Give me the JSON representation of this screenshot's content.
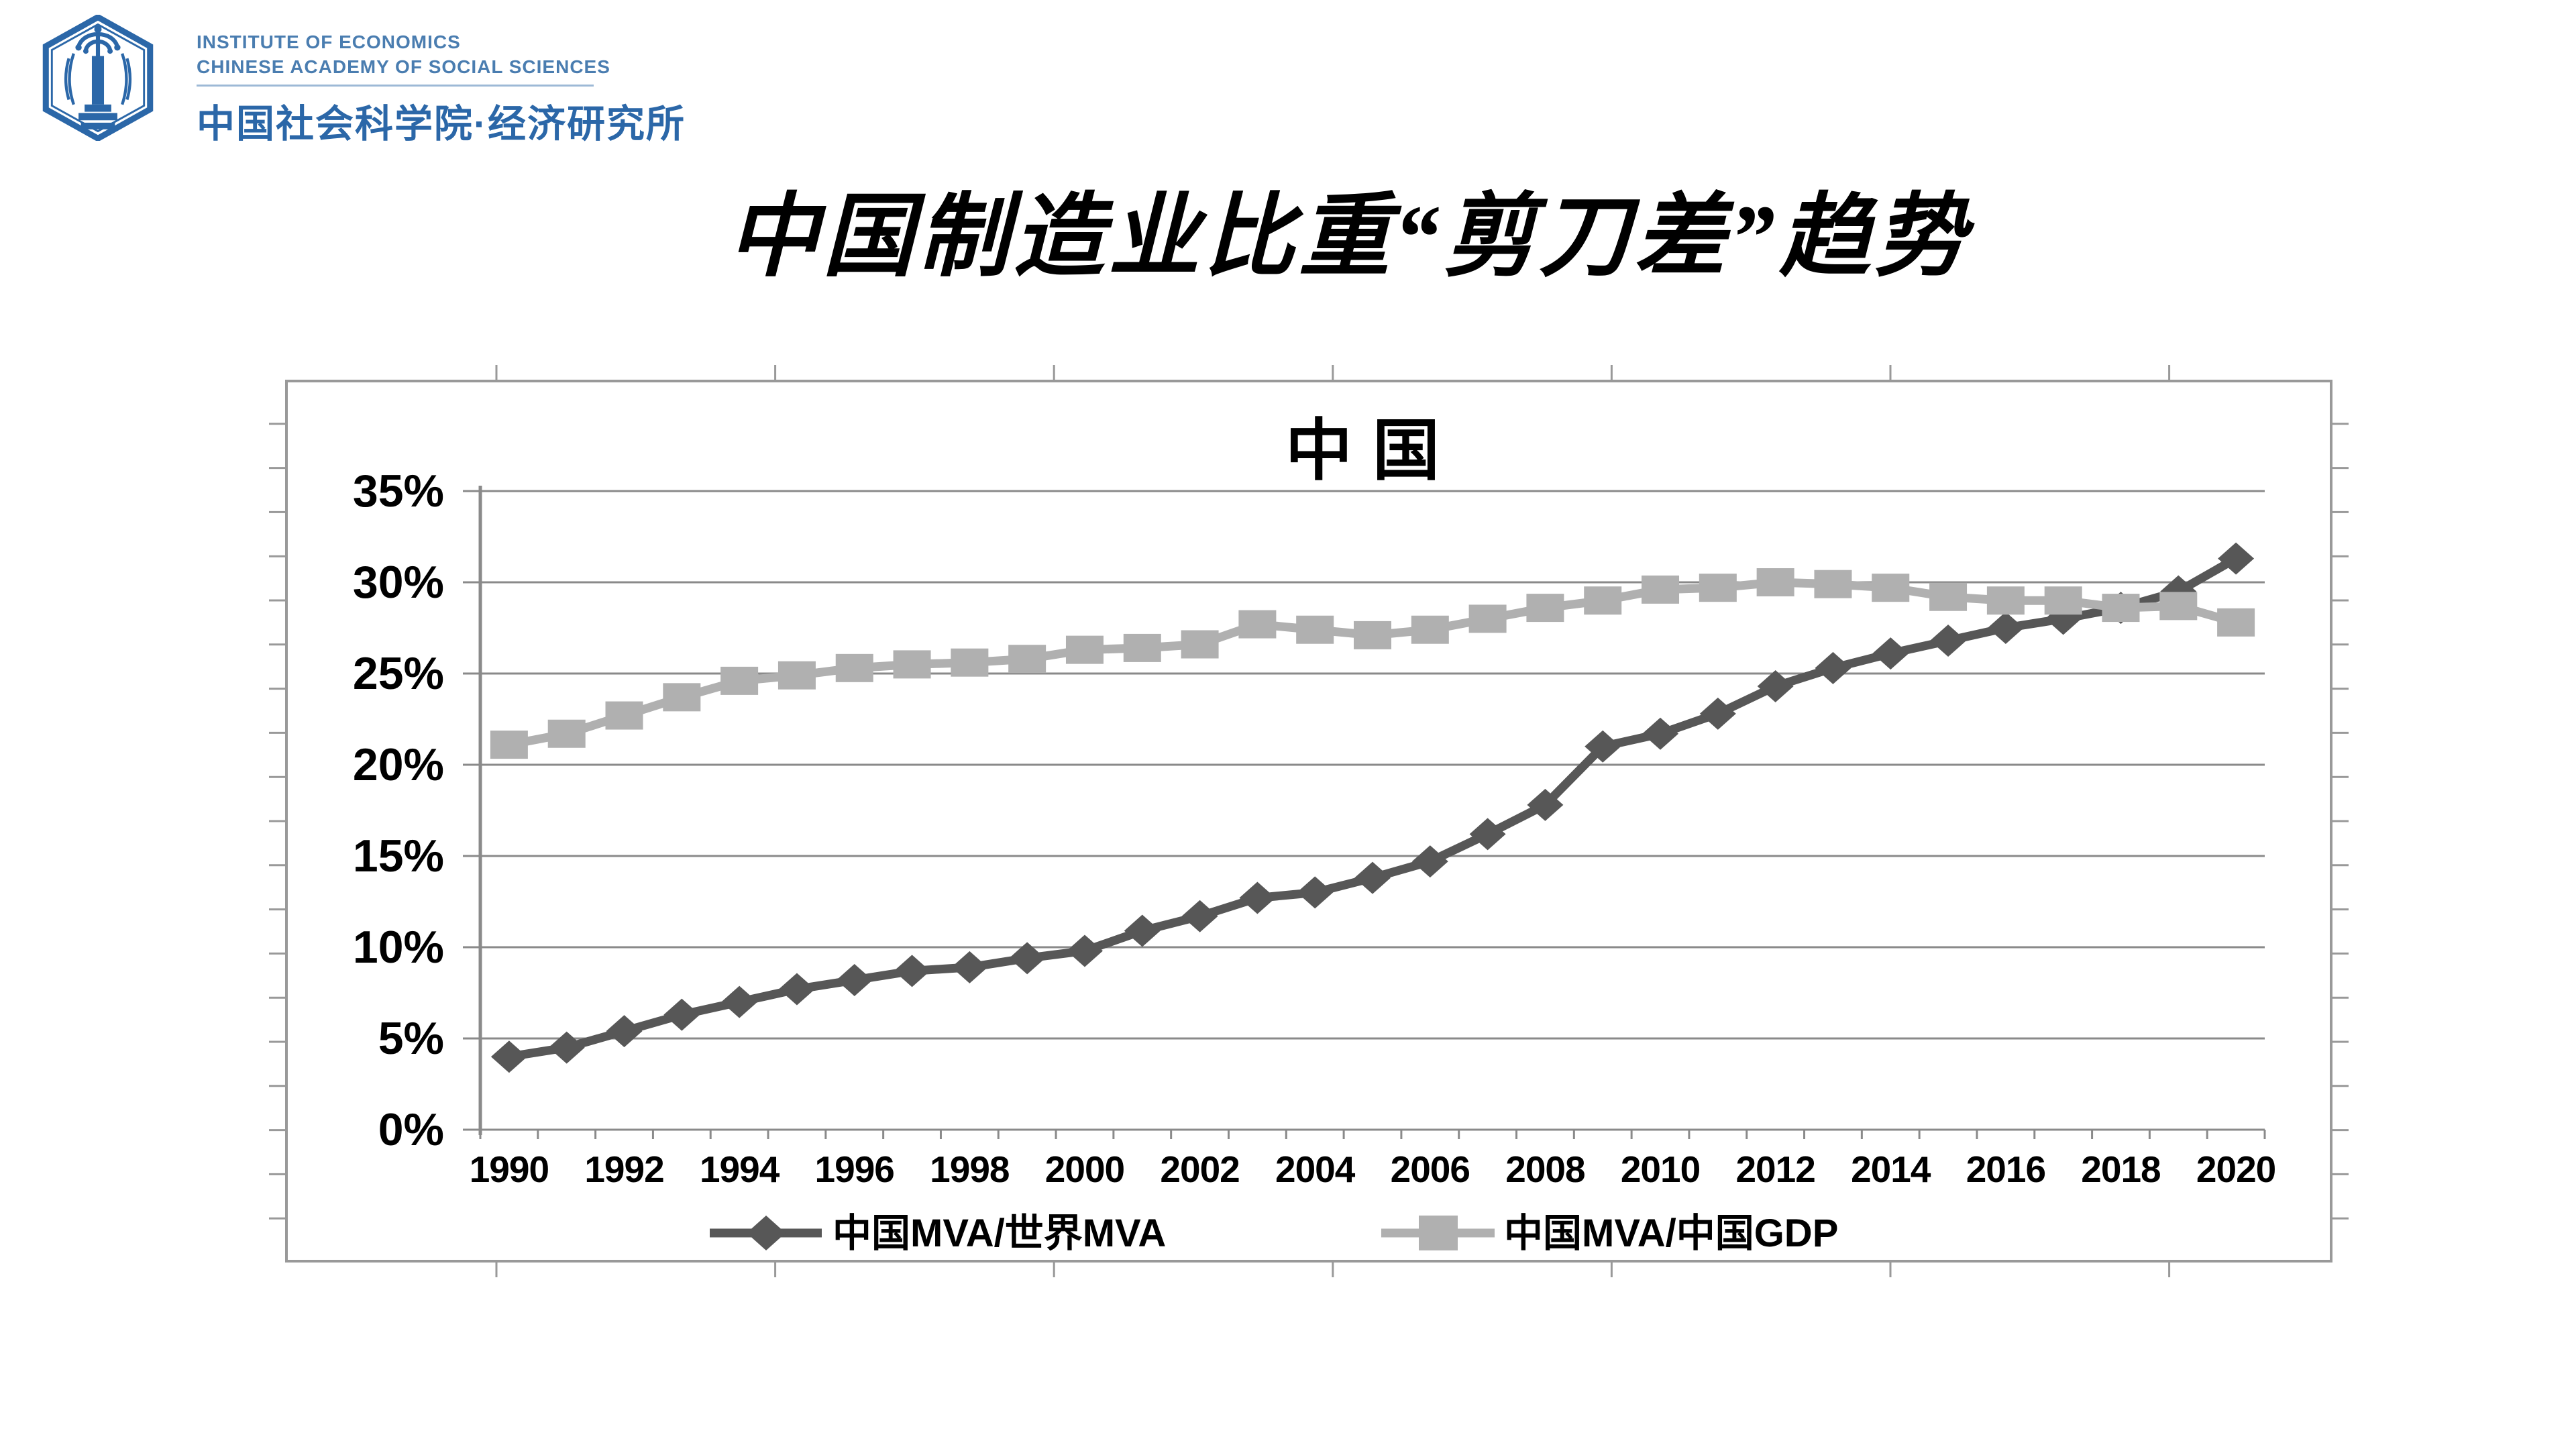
{
  "page": {
    "background": "#ffffff"
  },
  "logo": {
    "line1": "INSTITUTE OF ECONOMICS",
    "line2": "CHINESE ACADEMY OF SOCIAL SCIENCES",
    "line3": "中国社会科学院·经济研究所",
    "color": "#2b67a8"
  },
  "slide_title": "中国制造业比重“剪刀差”趋势",
  "chart_data": {
    "type": "line",
    "title": "中国",
    "x": [
      1990,
      1991,
      1992,
      1993,
      1994,
      1995,
      1996,
      1997,
      1998,
      1999,
      2000,
      2001,
      2002,
      2003,
      2004,
      2005,
      2006,
      2007,
      2008,
      2009,
      2010,
      2011,
      2012,
      2013,
      2014,
      2015,
      2016,
      2017,
      2018,
      2019,
      2020
    ],
    "x_tick_labels": [
      "1990",
      "1992",
      "1994",
      "1996",
      "1998",
      "2000",
      "2002",
      "2004",
      "2006",
      "2008",
      "2010",
      "2012",
      "2014",
      "2016",
      "2018",
      "2020"
    ],
    "y_tick_labels": [
      "35%",
      "30%",
      "25%",
      "20%",
      "15%",
      "10%",
      "5%",
      "0%"
    ],
    "ylim": [
      0,
      35
    ],
    "y_major_step": 5,
    "grid": true,
    "legend_position": "bottom",
    "series": [
      {
        "name": "中国MVA/世界MVA",
        "marker": "diamond",
        "color": "#575757",
        "values": [
          4.0,
          4.5,
          5.4,
          6.3,
          7.0,
          7.7,
          8.2,
          8.7,
          8.9,
          9.4,
          9.8,
          10.9,
          11.7,
          12.7,
          13.0,
          13.8,
          14.7,
          16.2,
          17.8,
          21.0,
          21.7,
          22.8,
          24.3,
          25.3,
          26.1,
          26.8,
          27.5,
          28.0,
          28.6,
          29.5,
          31.3
        ]
      },
      {
        "name": "中国MVA/中国GDP",
        "marker": "square",
        "color": "#b0b0b0",
        "values": [
          21.1,
          21.7,
          22.7,
          23.7,
          24.6,
          24.9,
          25.3,
          25.5,
          25.6,
          25.8,
          26.3,
          26.4,
          26.6,
          27.7,
          27.4,
          27.1,
          27.4,
          28.0,
          28.6,
          29.0,
          29.6,
          29.7,
          30.0,
          29.9,
          29.7,
          29.2,
          29.0,
          29.0,
          28.6,
          28.7,
          27.8
        ]
      }
    ],
    "colors": {
      "gridline": "#8a8a8a",
      "axis": "#8a8a8a",
      "frame": "#999999",
      "text": "#000000"
    }
  }
}
